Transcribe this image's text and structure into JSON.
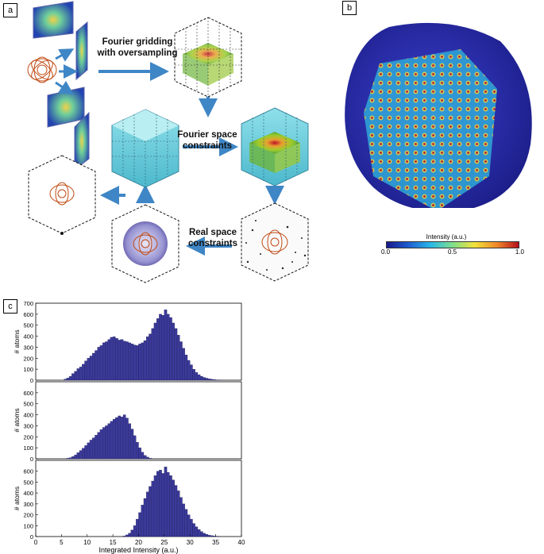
{
  "panels": {
    "a": "a",
    "b": "b",
    "c": "c"
  },
  "workflow": {
    "fourier_gridding": "Fourier gridding",
    "with_oversampling": "with oversampling",
    "fourier_space": "Fourier space",
    "fourier_constraints": "constraints",
    "real_space": "Real space",
    "real_constraints": "constraints"
  },
  "colorbar": {
    "label": "Intensity (a.u.)",
    "ticks": [
      "0.0",
      "0.5",
      "1.0"
    ],
    "colors": [
      "#1a1a8c",
      "#1f5fd0",
      "#29b7e8",
      "#7fe08a",
      "#f2e23a",
      "#f08a2a",
      "#b3101a"
    ]
  },
  "colors": {
    "bar_fill": "#3b3a9a",
    "bar_stroke": "#1a1950",
    "reconstruction_body": "#2b2fb8"
  },
  "chart_data": [
    {
      "type": "bar",
      "title": "",
      "xlabel": "",
      "ylabel": "# atoms",
      "xlim": [
        0,
        40
      ],
      "ylim": [
        0,
        700
      ],
      "yticks": [
        0,
        100,
        200,
        300,
        400,
        500,
        600,
        700
      ],
      "bin_width": 0.5,
      "x": [
        5.5,
        6,
        6.5,
        7,
        7.5,
        8,
        8.5,
        9,
        9.5,
        10,
        10.5,
        11,
        11.5,
        12,
        12.5,
        13,
        13.5,
        14,
        14.5,
        15,
        15.5,
        16,
        16.5,
        17,
        17.5,
        18,
        18.5,
        19,
        19.5,
        20,
        20.5,
        21,
        21.5,
        22,
        22.5,
        23,
        23.5,
        24,
        24.5,
        25,
        25.5,
        26,
        26.5,
        27,
        27.5,
        28,
        28.5,
        29,
        29.5,
        30,
        30.5,
        31,
        31.5,
        32,
        32.5,
        33,
        33.5,
        34,
        34.5,
        35,
        35.5,
        36
      ],
      "values": [
        10,
        20,
        35,
        60,
        80,
        105,
        120,
        145,
        175,
        200,
        220,
        245,
        270,
        300,
        315,
        340,
        350,
        370,
        390,
        395,
        380,
        365,
        370,
        355,
        350,
        340,
        330,
        320,
        315,
        330,
        340,
        360,
        395,
        420,
        470,
        520,
        560,
        600,
        590,
        640,
        600,
        570,
        520,
        470,
        410,
        350,
        290,
        230,
        180,
        140,
        100,
        70,
        50,
        35,
        25,
        18,
        12,
        8,
        5,
        3,
        2,
        1
      ]
    },
    {
      "type": "bar",
      "title": "",
      "xlabel": "",
      "ylabel": "# atoms",
      "xlim": [
        0,
        40
      ],
      "ylim": [
        0,
        700
      ],
      "yticks": [
        0,
        100,
        200,
        300,
        400,
        500,
        600
      ],
      "bin_width": 0.5,
      "x": [
        6,
        6.5,
        7,
        7.5,
        8,
        8.5,
        9,
        9.5,
        10,
        10.5,
        11,
        11.5,
        12,
        12.5,
        13,
        13.5,
        14,
        14.5,
        15,
        15.5,
        16,
        16.5,
        17,
        17.5,
        18,
        18.5,
        19,
        19.5,
        20,
        20.5,
        21,
        21.5,
        22
      ],
      "values": [
        5,
        10,
        20,
        35,
        55,
        75,
        95,
        120,
        145,
        170,
        190,
        215,
        240,
        265,
        285,
        300,
        320,
        340,
        360,
        375,
        390,
        380,
        400,
        370,
        320,
        270,
        210,
        150,
        100,
        60,
        30,
        15,
        5
      ]
    },
    {
      "type": "bar",
      "title": "",
      "xlabel": "Integrated Intensity (a.u.)",
      "ylabel": "# atoms",
      "xlim": [
        0,
        40
      ],
      "ylim": [
        0,
        700
      ],
      "yticks": [
        0,
        100,
        200,
        300,
        400,
        500,
        600
      ],
      "xticks": [
        0,
        5,
        10,
        15,
        20,
        25,
        30,
        35,
        40
      ],
      "bin_width": 0.5,
      "x": [
        17,
        17.5,
        18,
        18.5,
        19,
        19.5,
        20,
        20.5,
        21,
        21.5,
        22,
        22.5,
        23,
        23.5,
        24,
        24.5,
        25,
        25.5,
        26,
        26.5,
        27,
        27.5,
        28,
        28.5,
        29,
        29.5,
        30,
        30.5,
        31,
        31.5,
        32,
        32.5,
        33,
        33.5,
        34,
        34.5,
        35,
        35.5
      ],
      "values": [
        5,
        15,
        30,
        60,
        100,
        160,
        220,
        290,
        350,
        410,
        460,
        510,
        560,
        600,
        610,
        580,
        640,
        590,
        560,
        520,
        470,
        420,
        360,
        300,
        250,
        200,
        160,
        120,
        90,
        65,
        45,
        30,
        20,
        12,
        8,
        5,
        3,
        2
      ]
    }
  ]
}
